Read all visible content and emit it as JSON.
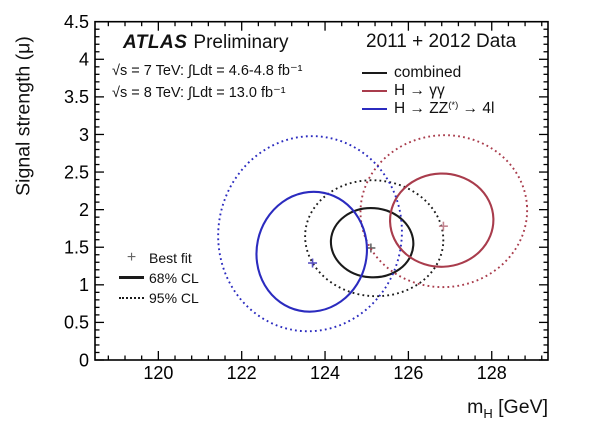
{
  "plot_header": {
    "experiment": "ATLAS",
    "label": "Preliminary",
    "dataset": "2011 + 2012 Data",
    "lumi_7": "√s = 7 TeV: ∫Ldt = 4.6-4.8 fb⁻¹",
    "lumi_8": "√s = 8 TeV: ∫Ldt = 13.0 fb⁻¹"
  },
  "legend": {
    "entries": [
      {
        "id": "combined",
        "label_pre": "combined",
        "label_sup": "",
        "label_post": "",
        "color": "#1a1a1a"
      },
      {
        "id": "gamma-gamma",
        "label_pre": "H → γγ",
        "label_sup": "",
        "label_post": "",
        "color": "#a93c4c"
      },
      {
        "id": "zz-4l",
        "label_pre": "H → ZZ",
        "label_sup": "(*)",
        "label_post": " → 4l",
        "color": "#2b2bbf"
      }
    ]
  },
  "cl_legend": {
    "best_fit_marker": "+",
    "best_fit_label": "Best fit",
    "cl68_label": "68% CL",
    "cl95_label": "95% CL",
    "marker_color": "#666666",
    "line_color": "#1a1a1a"
  },
  "axes": {
    "x_title_main": "m",
    "x_title_sub": "H",
    "x_title_unit": " [GeV]",
    "y_title": "Signal strength (μ)"
  },
  "chart_data": {
    "type": "scatter",
    "subtype": "confidence-contours",
    "title": "",
    "xlabel": "m_H [GeV]",
    "ylabel": "Signal strength (μ)",
    "xlim": [
      118.48,
      129.35
    ],
    "ylim": [
      0,
      4.5
    ],
    "grid": false,
    "legend_position": "top-right",
    "axis_color": "#000000",
    "x_major_ticks": [
      120,
      122,
      124,
      126,
      128
    ],
    "x_tick_labels": [
      "120",
      "122",
      "124",
      "126",
      "128"
    ],
    "x_minor_step": 0.4,
    "y_major_ticks": [
      0,
      0.5,
      1,
      1.5,
      2,
      2.5,
      3,
      3.5,
      4,
      4.5
    ],
    "y_tick_labels": [
      "0",
      "0.5",
      "1",
      "1.5",
      "2",
      "2.5",
      "3",
      "3.5",
      "4",
      "4.5"
    ],
    "y_minor_step": 0.1,
    "series": [
      {
        "id": "combined",
        "name": "combined",
        "color": "#1a1a1a",
        "marker_color": "#666666",
        "best_fit": {
          "mH": 125.1,
          "mu": 1.49
        },
        "cl68": {
          "cx": 125.13,
          "cy": 1.56,
          "rx": 0.99,
          "ry": 0.46,
          "rot": 4
        },
        "cl95": {
          "cx": 125.18,
          "cy": 1.62,
          "rx": 1.66,
          "ry": 0.77,
          "rot": 5
        }
      },
      {
        "id": "gamma-gamma",
        "name": "H → γγ",
        "color": "#a93c4c",
        "marker_color": "#c2848f",
        "best_fit": {
          "mH": 126.84,
          "mu": 1.78
        },
        "cl68": {
          "cx": 126.8,
          "cy": 1.86,
          "rx": 1.24,
          "ry": 0.62,
          "rot": -2
        },
        "cl95": {
          "cx": 126.85,
          "cy": 1.98,
          "rx": 2.0,
          "ry": 1.01,
          "rot": -4
        }
      },
      {
        "id": "zz-4l",
        "name": "H → ZZ(*) → 4l",
        "color": "#2b2bbf",
        "marker_color": "#5850c2",
        "best_fit": {
          "mH": 123.7,
          "mu": 1.29
        },
        "cl68": {
          "cx": 123.68,
          "cy": 1.44,
          "rx": 1.32,
          "ry": 0.8,
          "rot": 12
        },
        "cl95": {
          "cx": 123.64,
          "cy": 1.68,
          "rx": 2.2,
          "ry": 1.3,
          "rot": 10
        }
      }
    ]
  }
}
